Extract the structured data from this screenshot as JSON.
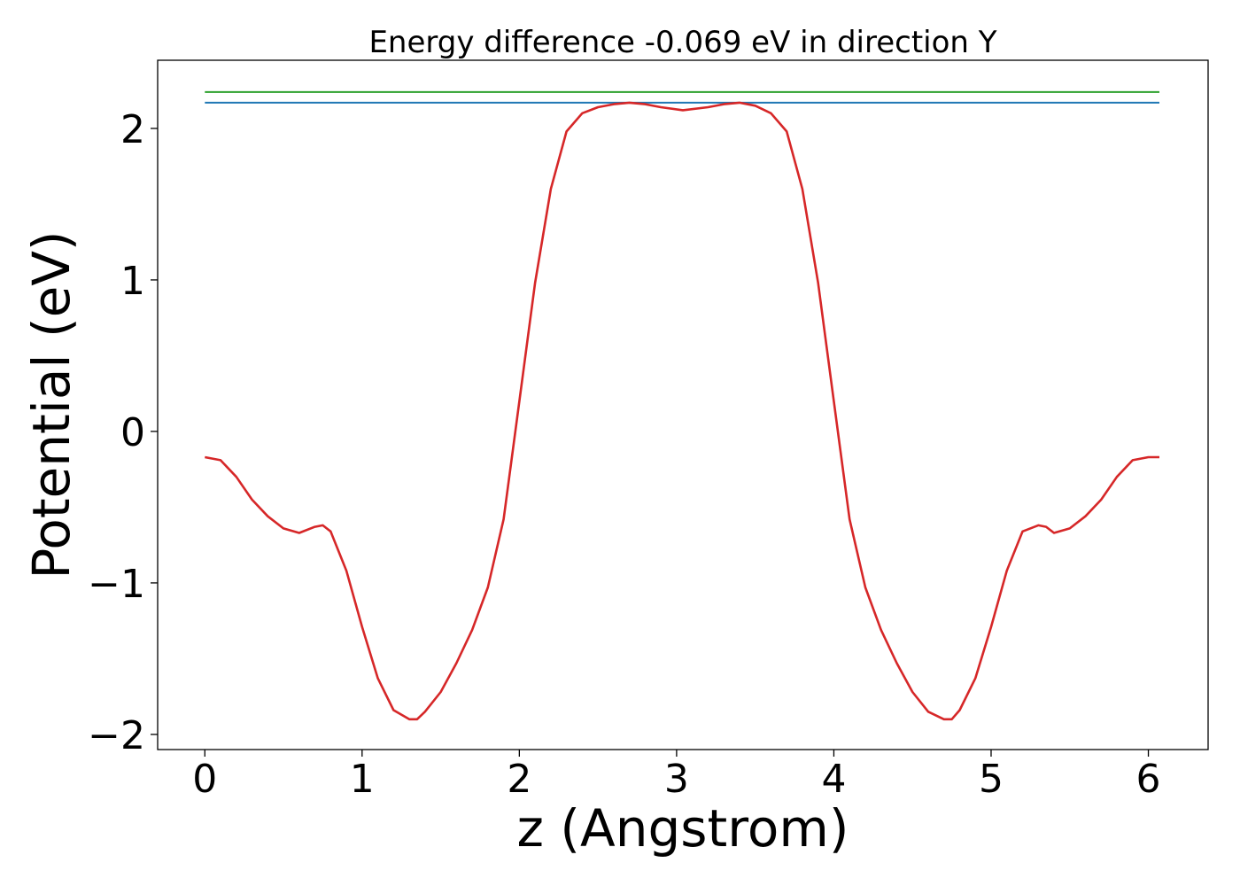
{
  "chart_data": {
    "type": "line",
    "title": "Energy difference -0.069 eV in direction Y",
    "xlabel": "z (Angstrom)",
    "ylabel": "Potential (eV)",
    "xlim": [
      -0.3,
      6.38
    ],
    "ylim": [
      -2.1,
      2.45
    ],
    "x_ticks": [
      0,
      1,
      2,
      3,
      4,
      5,
      6
    ],
    "y_ticks": [
      -2,
      -1,
      0,
      1,
      2
    ],
    "x_tick_labels": [
      "0",
      "1",
      "2",
      "3",
      "4",
      "5",
      "6"
    ],
    "y_tick_labels": [
      "−2",
      "−1",
      "0",
      "1",
      "2"
    ],
    "grid": false,
    "legend": "none",
    "series": [
      {
        "color": "#d62728",
        "x": [
          0,
          0.1,
          0.2,
          0.3,
          0.4,
          0.5,
          0.6,
          0.7,
          0.75,
          0.8,
          0.9,
          1.0,
          1.1,
          1.2,
          1.3,
          1.35,
          1.4,
          1.5,
          1.6,
          1.7,
          1.8,
          1.9,
          2.0,
          2.1,
          2.2,
          2.3,
          2.4,
          2.5,
          2.6,
          2.7,
          2.8,
          2.9,
          3.04,
          3.2,
          3.3,
          3.4,
          3.5,
          3.6,
          3.7,
          3.8,
          3.9,
          4.0,
          4.1,
          4.2,
          4.3,
          4.4,
          4.5,
          4.6,
          4.7,
          4.75,
          4.8,
          4.9,
          5.0,
          5.1,
          5.2,
          5.3,
          5.35,
          5.4,
          5.5,
          5.6,
          5.7,
          5.8,
          5.9,
          6.0,
          6.07
        ],
        "y": [
          -0.17,
          -0.19,
          -0.3,
          -0.45,
          -0.56,
          -0.64,
          -0.67,
          -0.63,
          -0.62,
          -0.66,
          -0.92,
          -1.29,
          -1.63,
          -1.84,
          -1.9,
          -1.9,
          -1.85,
          -1.72,
          -1.53,
          -1.31,
          -1.03,
          -0.58,
          0.2,
          0.98,
          1.6,
          1.98,
          2.1,
          2.14,
          2.16,
          2.17,
          2.16,
          2.14,
          2.12,
          2.14,
          2.16,
          2.17,
          2.15,
          2.1,
          1.98,
          1.6,
          0.98,
          0.2,
          -0.58,
          -1.03,
          -1.31,
          -1.53,
          -1.72,
          -1.85,
          -1.9,
          -1.9,
          -1.84,
          -1.63,
          -1.29,
          -0.92,
          -0.66,
          -0.62,
          -0.63,
          -0.67,
          -0.64,
          -0.56,
          -0.45,
          -0.3,
          -0.19,
          -0.17,
          -0.17
        ]
      },
      {
        "color": "#1f77b4",
        "x": [
          0,
          6.07
        ],
        "y": [
          2.17,
          2.17
        ]
      },
      {
        "color": "#2ca02c",
        "x": [
          0,
          6.07
        ],
        "y": [
          2.24,
          2.24
        ]
      }
    ]
  }
}
